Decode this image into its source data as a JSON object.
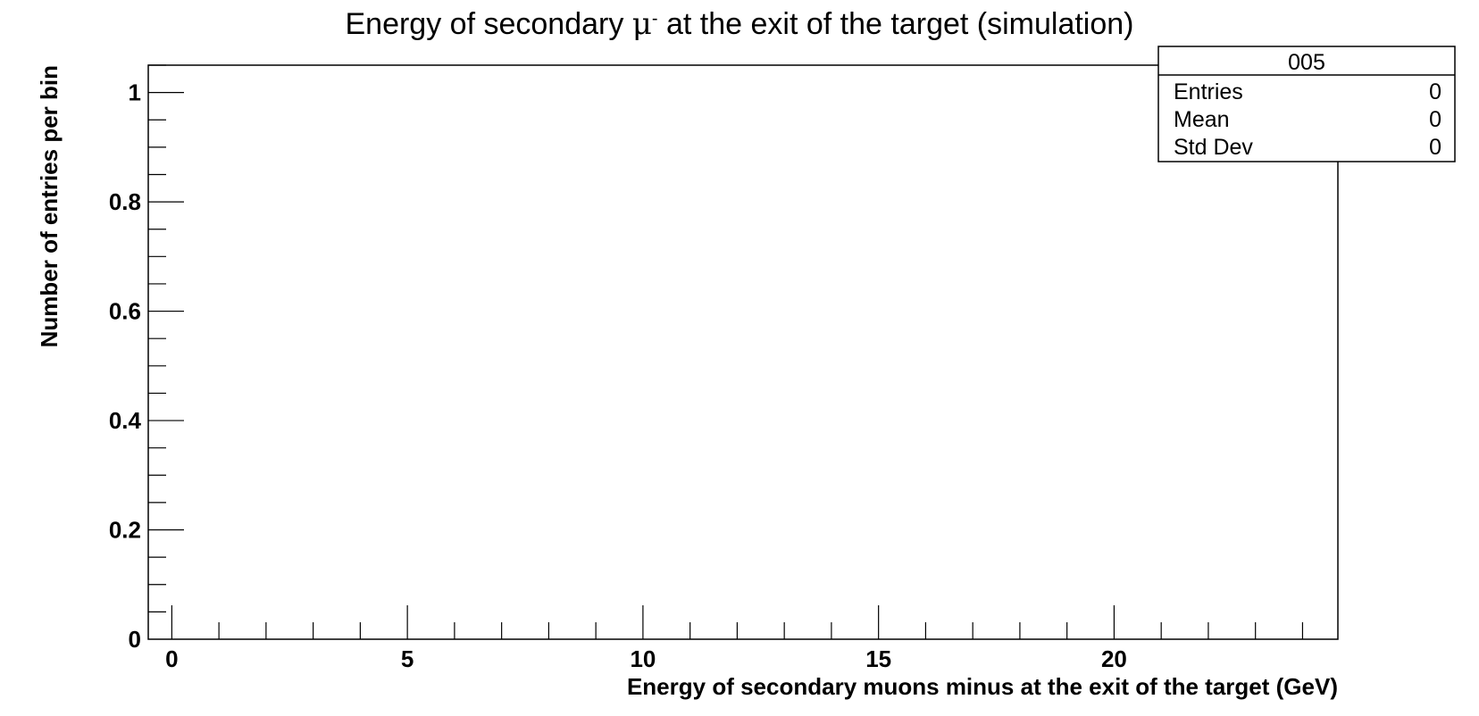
{
  "chart_data": {
    "type": "bar",
    "title_prefix": "Energy of secondary ",
    "title_symbol": "μ",
    "title_superscript": "-",
    "title_suffix": " at the exit of the target (simulation)",
    "xlabel": "Energy of secondary muons minus at the exit of the target (GeV)",
    "ylabel": "Number of entries per bin",
    "xlim": [
      -0.5,
      24.75
    ],
    "ylim": [
      0,
      1.05
    ],
    "x_major_ticks": [
      0,
      5,
      10,
      15,
      20
    ],
    "x_tick_labels": [
      "0",
      "5",
      "10",
      "15",
      "20"
    ],
    "x_minor_step": 1,
    "y_major_ticks": [
      0,
      0.2,
      0.4,
      0.6,
      0.8,
      1
    ],
    "y_tick_labels": [
      "0",
      "0.2",
      "0.4",
      "0.6",
      "0.8",
      "1"
    ],
    "y_minor_step": 0.05,
    "categories": [],
    "values": [],
    "grid": false,
    "stats_box": {
      "name": "005",
      "entries_label": "Entries",
      "entries_value": "0",
      "mean_label": "Mean",
      "mean_value": "0",
      "stddev_label": "Std Dev",
      "stddev_value": "0"
    }
  }
}
